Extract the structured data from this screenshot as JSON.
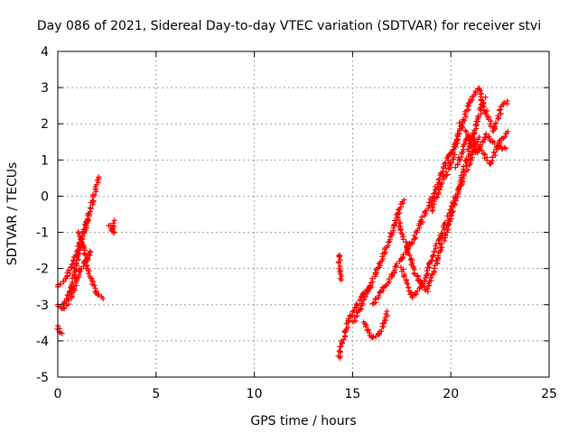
{
  "chart_data": {
    "type": "scatter",
    "title": "Day 086 of 2021, Sidereal Day-to-day VTEC variation (SDTVAR) for receiver stvi",
    "xlabel": "GPS time / hours",
    "ylabel": "SDTVAR / TECUs",
    "xlim": [
      0,
      25
    ],
    "ylim": [
      -5,
      4
    ],
    "xticks": [
      0,
      5,
      10,
      15,
      20,
      25
    ],
    "yticks": [
      -5,
      -4,
      -3,
      -2,
      -1,
      0,
      1,
      2,
      3,
      4
    ],
    "grid": true,
    "marker": "+",
    "color": "#ff0000",
    "series": [
      {
        "name": "SDTVAR",
        "tracks": [
          [
            [
              0.0,
              -2.5
            ],
            [
              0.4,
              -2.3
            ],
            [
              0.8,
              -1.8
            ],
            [
              1.2,
              -1.2
            ],
            [
              1.5,
              -0.7
            ],
            [
              1.8,
              -0.1
            ],
            [
              2.1,
              0.5
            ]
          ],
          [
            [
              0.0,
              -3.0
            ],
            [
              0.3,
              -3.1
            ],
            [
              0.6,
              -2.6
            ],
            [
              0.9,
              -2.0
            ],
            [
              1.2,
              -1.3
            ],
            [
              1.4,
              -0.8
            ],
            [
              1.6,
              -0.5
            ]
          ],
          [
            [
              0.5,
              -3.0
            ],
            [
              0.8,
              -2.6
            ],
            [
              1.1,
              -2.1
            ],
            [
              1.4,
              -1.8
            ],
            [
              1.7,
              -2.3
            ],
            [
              2.0,
              -2.7
            ],
            [
              2.3,
              -2.8
            ]
          ],
          [
            [
              1.1,
              -1.0
            ],
            [
              1.3,
              -1.4
            ],
            [
              1.5,
              -1.8
            ],
            [
              1.7,
              -1.5
            ]
          ],
          [
            [
              2.6,
              -0.8
            ],
            [
              2.8,
              -1.0
            ],
            [
              2.9,
              -0.7
            ]
          ],
          [
            [
              0.0,
              -3.6
            ],
            [
              0.2,
              -3.8
            ]
          ],
          [
            [
              14.3,
              -4.5
            ],
            [
              14.5,
              -4.0
            ],
            [
              14.8,
              -3.4
            ],
            [
              15.2,
              -3.0
            ],
            [
              15.6,
              -2.7
            ],
            [
              16.0,
              -2.5
            ]
          ],
          [
            [
              14.3,
              -1.6
            ],
            [
              14.4,
              -2.3
            ]
          ],
          [
            [
              15.0,
              -3.5
            ],
            [
              15.4,
              -3.1
            ],
            [
              15.8,
              -2.6
            ],
            [
              16.2,
              -2.1
            ],
            [
              16.6,
              -1.6
            ],
            [
              17.0,
              -1.0
            ],
            [
              17.3,
              -0.5
            ],
            [
              17.6,
              -0.1
            ]
          ],
          [
            [
              15.6,
              -3.5
            ],
            [
              16.0,
              -3.9
            ],
            [
              16.4,
              -3.8
            ],
            [
              16.8,
              -3.2
            ]
          ],
          [
            [
              16.0,
              -3.0
            ],
            [
              16.5,
              -2.6
            ],
            [
              17.0,
              -2.2
            ],
            [
              17.5,
              -1.7
            ],
            [
              18.0,
              -1.3
            ],
            [
              18.5,
              -0.7
            ],
            [
              19.0,
              -0.1
            ],
            [
              19.5,
              0.6
            ],
            [
              20.0,
              1.2
            ],
            [
              20.4,
              1.7
            ]
          ],
          [
            [
              17.5,
              -2.0
            ],
            [
              18.0,
              -2.8
            ],
            [
              18.5,
              -2.5
            ],
            [
              19.0,
              -1.8
            ],
            [
              19.5,
              -1.1
            ],
            [
              20.0,
              -0.4
            ],
            [
              20.5,
              0.3
            ],
            [
              21.0,
              1.0
            ],
            [
              21.4,
              1.6
            ]
          ],
          [
            [
              17.3,
              -0.6
            ],
            [
              17.8,
              -1.5
            ],
            [
              18.3,
              -2.3
            ],
            [
              18.8,
              -2.6
            ],
            [
              19.3,
              -1.8
            ],
            [
              19.8,
              -0.9
            ],
            [
              20.3,
              0.0
            ],
            [
              20.8,
              1.0
            ],
            [
              21.3,
              2.0
            ],
            [
              21.7,
              2.7
            ]
          ],
          [
            [
              19.0,
              -0.4
            ],
            [
              19.5,
              0.3
            ],
            [
              20.0,
              0.9
            ],
            [
              20.5,
              1.9
            ],
            [
              21.0,
              2.6
            ],
            [
              21.4,
              3.0
            ],
            [
              21.8,
              2.3
            ],
            [
              22.2,
              1.8
            ],
            [
              22.6,
              2.5
            ],
            [
              22.9,
              2.6
            ]
          ],
          [
            [
              20.3,
              0.8
            ],
            [
              20.8,
              1.6
            ],
            [
              21.3,
              1.2
            ],
            [
              21.8,
              1.7
            ],
            [
              22.3,
              1.4
            ],
            [
              22.8,
              1.3
            ]
          ],
          [
            [
              20.5,
              2.0
            ],
            [
              21.0,
              1.6
            ],
            [
              21.5,
              1.3
            ],
            [
              22.0,
              0.9
            ],
            [
              22.5,
              1.5
            ],
            [
              22.9,
              1.8
            ]
          ]
        ]
      }
    ]
  }
}
